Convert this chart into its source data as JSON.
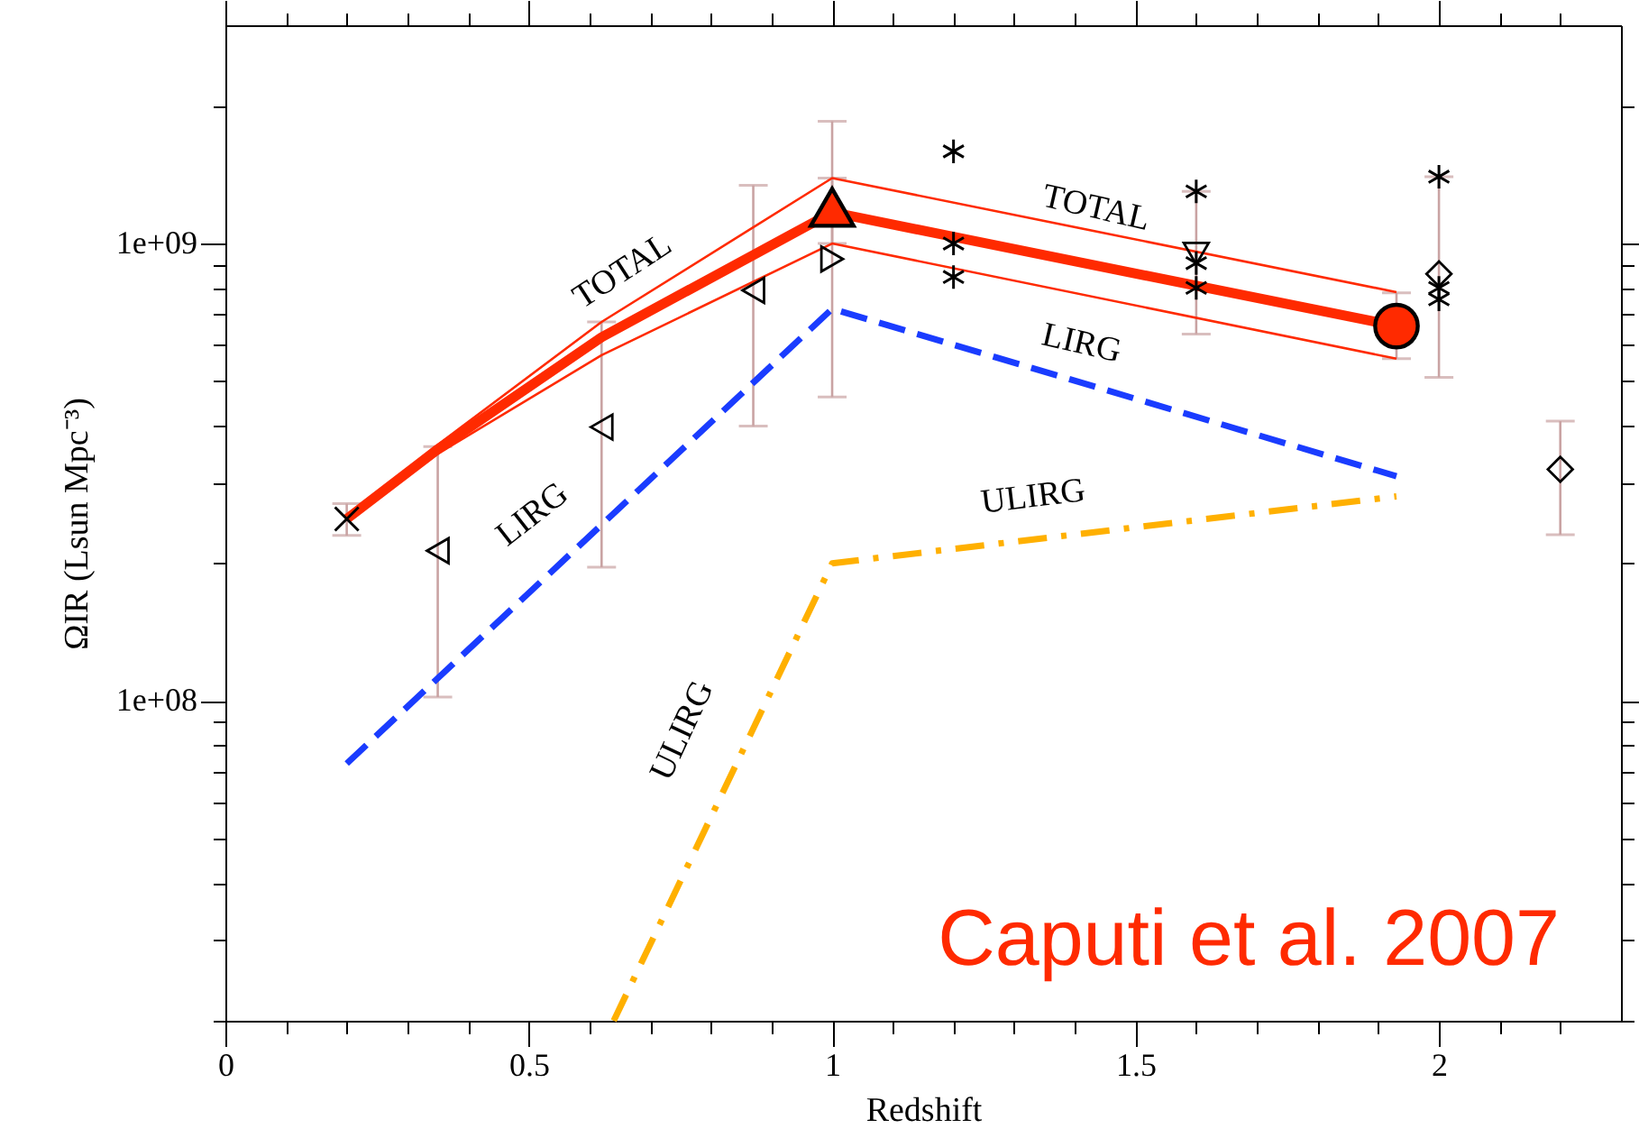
{
  "chart_data": {
    "type": "line",
    "xlabel": "Redshift",
    "ylabel": "ΩIR (Lsun Mpc⁻³)",
    "xlim": [
      0,
      2.3
    ],
    "ylim": [
      20000000,
      3000000000
    ],
    "log": "y",
    "grid": false,
    "xticks": [
      0,
      {
        "value": 0.1,
        "label": null
      },
      {
        "value": 0.2,
        "label": null
      },
      {
        "value": 0.3,
        "label": null
      },
      {
        "value": 0.4,
        "label": null
      },
      0.5,
      {
        "value": 0.6,
        "label": null
      },
      {
        "value": 0.7,
        "label": null
      },
      {
        "value": 0.8,
        "label": null
      },
      {
        "value": 0.9,
        "label": null
      },
      1,
      {
        "value": 1.1,
        "label": null
      },
      {
        "value": 1.2,
        "label": null
      },
      {
        "value": 1.3,
        "label": null
      },
      {
        "value": 1.4,
        "label": null
      },
      1.5,
      {
        "value": 1.6,
        "label": null
      },
      {
        "value": 1.7,
        "label": null
      },
      {
        "value": 1.8,
        "label": null
      },
      {
        "value": 1.9,
        "label": null
      },
      2,
      {
        "value": 2.1,
        "label": null
      },
      {
        "value": 2.2,
        "label": null
      }
    ],
    "yticks": [
      {
        "value": 20000000,
        "label": null
      },
      {
        "value": 30000000,
        "label": null
      },
      {
        "value": 40000000,
        "label": null
      },
      {
        "value": 50000000,
        "label": null
      },
      {
        "value": 60000000,
        "label": null
      },
      {
        "value": 70000000,
        "label": null
      },
      {
        "value": 80000000,
        "label": null
      },
      {
        "value": 90000000,
        "label": null
      },
      {
        "value": 100000000,
        "label": "1e+08"
      },
      {
        "value": 200000000,
        "label": null
      },
      {
        "value": 300000000,
        "label": null
      },
      {
        "value": 400000000,
        "label": null
      },
      {
        "value": 500000000,
        "label": null
      },
      {
        "value": 600000000,
        "label": null
      },
      {
        "value": 700000000,
        "label": null
      },
      {
        "value": 800000000,
        "label": null
      },
      {
        "value": 900000000,
        "label": null
      },
      {
        "value": 1000000000,
        "label": "1e+09"
      },
      {
        "value": 2000000000,
        "label": null
      }
    ],
    "series": [
      {
        "color": "#ff2a00",
        "x": [
          0.2,
          0.35,
          0.62,
          1.0,
          1.93
        ],
        "values": [
          250000000,
          363000000,
          674000000,
          1390000000,
          783000000
        ]
      },
      {
        "color": "#ff2a00",
        "x": [
          0.2,
          0.35,
          0.62,
          1.0,
          1.93
        ],
        "values": [
          250000000,
          347000000,
          570000000,
          1000000000,
          560000000
        ]
      },
      {
        "color": "#ff2a00",
        "line_style": "solid",
        "x": [
          0.2,
          0.35,
          0.62,
          1.0,
          1.93
        ],
        "values": [
          250000000,
          355000000,
          624000000,
          1170000000,
          660000000
        ]
      },
      {
        "color": "#1a3cff",
        "line_style": "dashed",
        "x": [
          0.2,
          1.0,
          1.93
        ],
        "values": [
          73000000,
          720000000,
          310000000
        ]
      },
      {
        "color": "#ffb000",
        "line_style": "dashdot",
        "x": [
          0.64,
          1.0,
          1.93
        ],
        "values": [
          20000000,
          200000000,
          280000000
        ]
      },
      {
        "type": "scatter",
        "color": "#000000",
        "marker": "cross",
        "x": [
          0.2
        ],
        "values": [
          250000000
        ],
        "errors": [
          [
            230000000,
            270000000
          ]
        ]
      },
      {
        "type": "scatter",
        "color": "#ff2a00",
        "marker": "triangle-up",
        "x": [
          1.0
        ],
        "values": [
          1200000000
        ],
        "errors": [
          [
            1000000000,
            1390000000
          ]
        ]
      },
      {
        "type": "scatter",
        "color": "#ff2a00",
        "marker": "circle",
        "x": [
          1.93
        ],
        "values": [
          660000000
        ],
        "errors": [
          [
            560000000,
            780000000
          ]
        ]
      },
      {
        "type": "scatter",
        "color": "#000000",
        "marker": "triangle-left",
        "x": [
          0.35,
          0.62,
          0.87
        ],
        "values": [
          213000000,
          397000000,
          790000000
        ],
        "errors": [
          [
            102000000,
            360000000
          ],
          [
            196000000,
            674000000
          ],
          [
            399000000,
            1340000000
          ]
        ]
      },
      {
        "type": "scatter",
        "color": "#000000",
        "marker": "triangle-right",
        "x": [
          1.0
        ],
        "values": [
          925000000
        ],
        "errors": [
          [
            462000000,
            1850000000
          ]
        ]
      },
      {
        "type": "scatter",
        "color": "#000000",
        "marker": "triangle-down",
        "x": [
          1.6
        ],
        "values": [
          950000000
        ],
        "errors": [
          [
            634000000,
            1300000000
          ]
        ]
      },
      {
        "type": "scatter",
        "color": "#000000",
        "x": [
          1.2,
          1.2,
          1.2,
          1.6,
          1.6,
          1.6,
          2.0,
          2.0,
          2.0
        ],
        "values": [
          1590000000,
          1000000000,
          845000000,
          1300000000,
          906000000,
          800000000,
          1400000000,
          800000000,
          755000000
        ]
      },
      {
        "type": "scatter",
        "color": "#000000",
        "marker": "diamond",
        "x": [
          2.0,
          2.2
        ],
        "values": [
          858000000,
          321000000
        ],
        "errors": [
          [
            510000000,
            1400000000
          ],
          [
            231000000,
            409000000
          ]
        ]
      }
    ],
    "annotations": [
      "TOTAL",
      "LIRG",
      "ULIRG",
      "TOTAL",
      "LIRG",
      "ULIRG",
      "Caputi et al. 2007"
    ]
  }
}
